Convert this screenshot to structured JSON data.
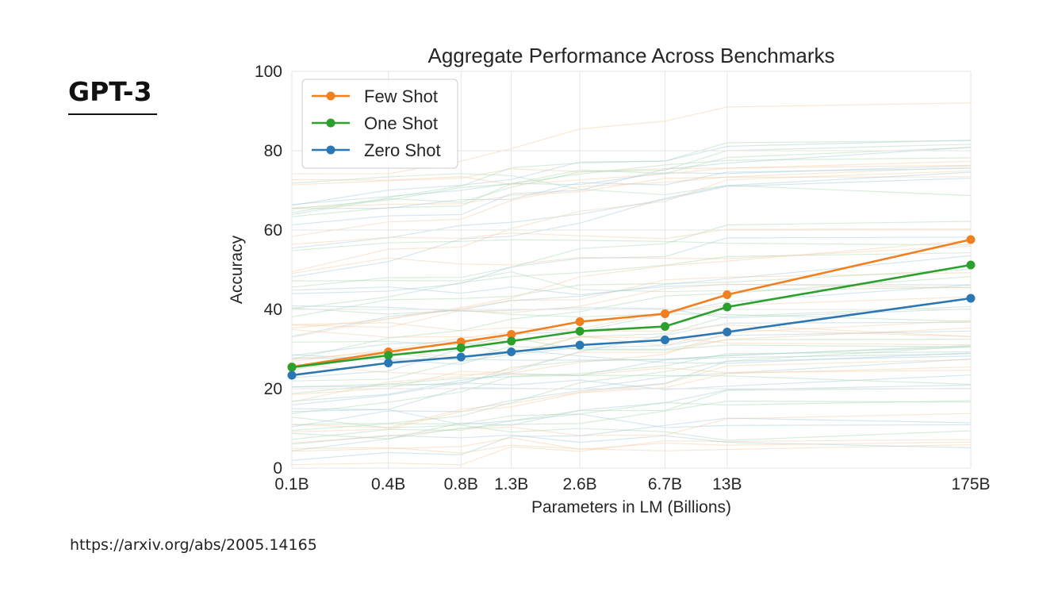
{
  "slide": {
    "heading": "GPT-3",
    "source": "https://arxiv.org/abs/2005.14165"
  },
  "colors": {
    "few_shot": "#f07f1f",
    "one_shot": "#2ca02c",
    "zero_shot": "#2a77b4",
    "grid": "#e6e6e6",
    "background_lines": "#9ccfd2"
  },
  "chart_data": {
    "type": "line",
    "title": "Aggregate Performance Across Benchmarks",
    "xlabel": "Parameters in LM (Billions)",
    "ylabel": "Accuracy",
    "categories": [
      "0.1B",
      "0.4B",
      "0.8B",
      "1.3B",
      "2.6B",
      "6.7B",
      "13B",
      "175B"
    ],
    "x": [
      0.125,
      0.35,
      0.76,
      1.3,
      2.7,
      6.7,
      13,
      175
    ],
    "ylim": [
      0,
      100
    ],
    "yticks": [
      0,
      20,
      40,
      60,
      80,
      100
    ],
    "grid": true,
    "legend_position": "top-left",
    "series": [
      {
        "name": "Few Shot",
        "color": "#f07f1f",
        "values": [
          25.5,
          29.3,
          31.8,
          33.7,
          36.9,
          38.9,
          43.7,
          57.6
        ]
      },
      {
        "name": "One Shot",
        "color": "#2ca02c",
        "values": [
          25.4,
          28.4,
          30.3,
          32.0,
          34.5,
          35.7,
          40.6,
          51.2
        ]
      },
      {
        "name": "Zero Shot",
        "color": "#2a77b4",
        "values": [
          23.4,
          26.5,
          28.0,
          29.3,
          31.0,
          32.3,
          34.3,
          42.8
        ]
      }
    ]
  }
}
